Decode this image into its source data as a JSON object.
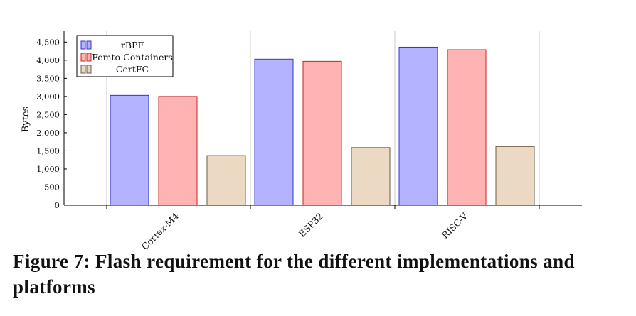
{
  "chart_data": {
    "type": "bar",
    "categories": [
      "Cortex-M4",
      "ESP32",
      "RISC-V"
    ],
    "series": [
      {
        "name": "rBPF",
        "values": [
          3030,
          4030,
          4360
        ],
        "fill": "#b3b3ff",
        "stroke": "#3333cc"
      },
      {
        "name": "Femto-Containers",
        "values": [
          3000,
          3970,
          4290
        ],
        "fill": "#ffb3b3",
        "stroke": "#cc2222"
      },
      {
        "name": "CertFC",
        "values": [
          1370,
          1590,
          1620
        ],
        "fill": "#ebd9c4",
        "stroke": "#6b5a45"
      }
    ],
    "ylabel": "Bytes",
    "ylim": [
      0,
      4800
    ],
    "yticks": [
      0,
      500,
      1000,
      1500,
      2000,
      2500,
      3000,
      3500,
      4000,
      4500
    ],
    "ytick_labels": [
      "0",
      "500",
      "1,000",
      "1,500",
      "2,000",
      "2,500",
      "3,000",
      "3,500",
      "4,000",
      "4,500"
    ],
    "legend_position": "top-left",
    "grid": "vertical"
  },
  "caption": {
    "text": "Figure 7: Flash requirement for the different implementations and platforms"
  }
}
